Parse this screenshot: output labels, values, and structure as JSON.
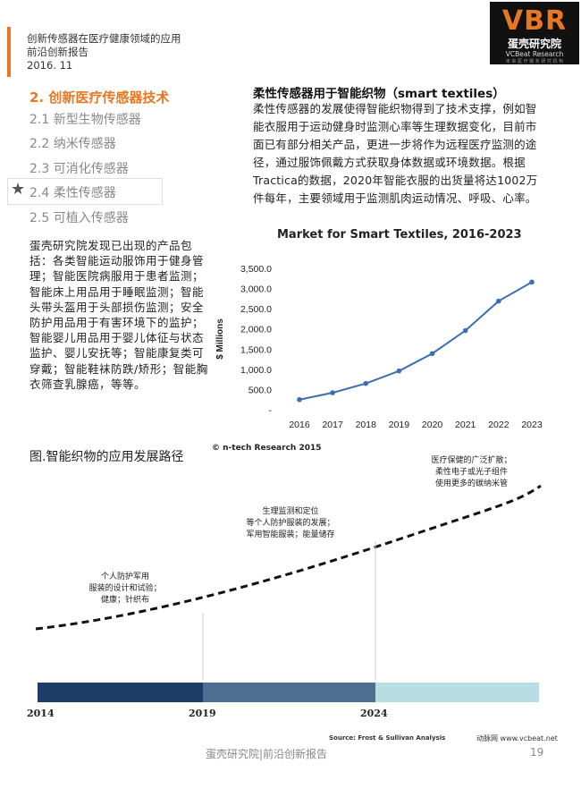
{
  "header": {
    "line1": "创新传感器在医疗健康领域的应用",
    "line2": "前沿创新报告",
    "line3": "2016. 11"
  },
  "logo": {
    "mark": "VBR",
    "cn": "蛋壳研究院",
    "en": "VCBeat Research",
    "sub": "未 来 医 疗 服 务 研 究 机 构"
  },
  "toc": {
    "title": "2. 创新医疗传感器技术",
    "items": [
      {
        "label": "2.1 新型生物传感器"
      },
      {
        "label": "2.2 纳米传感器"
      },
      {
        "label": "2.3 可消化传感器"
      },
      {
        "label": "2.4 柔性传感器"
      },
      {
        "label": "2.5 可植入传感器"
      }
    ]
  },
  "left_paragraph": "蛋壳研究院发现已出现的产品包括：各类智能运动服饰用于健身管理；智能医院病服用于患者监测；智能床上用品用于睡眠监测；智能头带头盔用于头部损伤监测；安全防护用品用于有害环境下的监护；智能婴儿用品用于婴儿体征与状态监护、婴儿安抚等；智能康复类可穿戴；智能鞋袜防跌/矫形；智能胸衣筛查乳腺癌，等等。",
  "right": {
    "title": "柔性传感器用于智能织物（smart textiles）",
    "paragraph": "柔性传感器的发展使得智能织物得到了技术支撑，例如智能衣服用于运动健身时监测心率等生理数据变化，目前市面已有部分相关产品，更进一步将作为远程医疗监测的途径，通过服饰佩戴方式获取身体数据或环境数据。根据Tractica的数据，2020年智能衣服的出货量将达1002万件每年，主要领域用于监测肌肉运动情况、呼吸、心率。"
  },
  "chart_data": {
    "type": "line",
    "title": "Market for Smart Textiles, 2016-2023",
    "xlabel": "",
    "ylabel": "$ Millions",
    "x": [
      "2016",
      "2017",
      "2018",
      "2019",
      "2020",
      "2021",
      "2022",
      "2023"
    ],
    "series": [
      {
        "values": [
          250,
          420,
          650,
          960,
          1390,
          1960,
          2690,
          3160
        ]
      }
    ],
    "ylim": [
      0,
      3500
    ],
    "yticks": [
      "3,500.0",
      "3,000.0",
      "2,500.0",
      "2,000.0",
      "1,500.0",
      "1,000.0",
      "500.0",
      "-"
    ],
    "grid": false,
    "color": "#3b6fb0",
    "credit": "© n-tech Research 2015"
  },
  "figure": {
    "caption": "图.智能织物的应用发展路径",
    "stage1": [
      "个人防护军用",
      "服装的设计和试验；",
      "健康；针织布"
    ],
    "stage2": [
      "生理监测和定位",
      "等个人防护服装的发展；",
      "军用智能服装；能量储存"
    ],
    "stage3": [
      "医疗保健的广泛扩散；",
      "柔性电子或光子组件",
      "使用更多的碳纳米管"
    ],
    "years": [
      "2014",
      "2019",
      "2024"
    ],
    "source": "Source: Frost & Sullivan Analysis",
    "site": "动脉网 www.vcbeat.net",
    "colors": [
      "#1d3d66",
      "#4f6f92",
      "#b8dde3"
    ]
  },
  "footer": {
    "text": "蛋壳研究院|前沿创新报告",
    "page": "19"
  }
}
